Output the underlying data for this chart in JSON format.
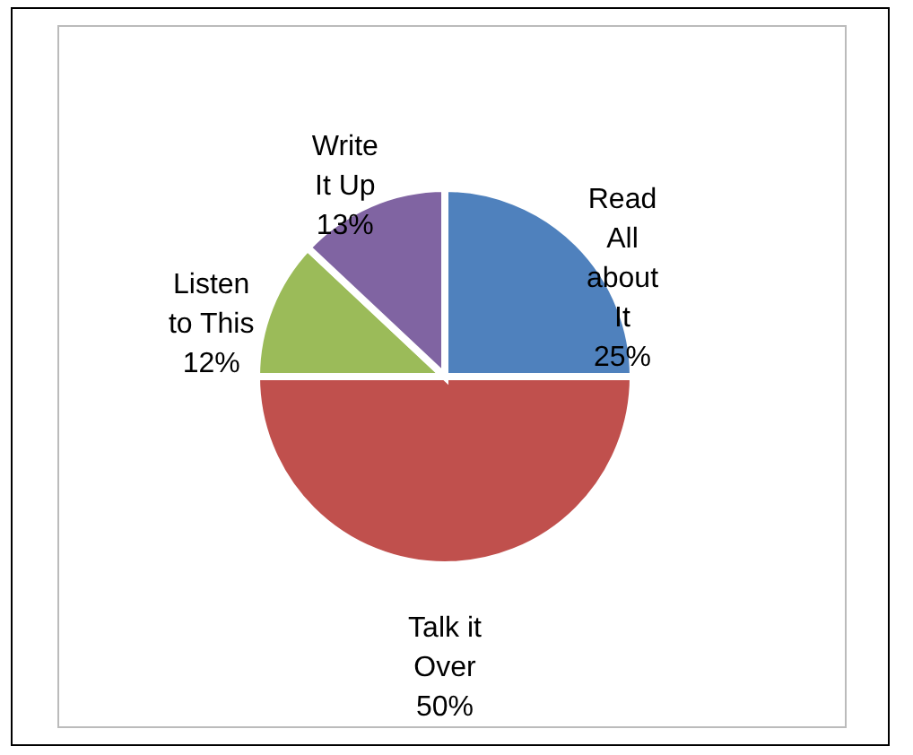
{
  "chart_data": {
    "type": "pie",
    "categories": [
      "Read All about It",
      "Talk it Over",
      "Listen to This",
      "Write It Up"
    ],
    "values": [
      25,
      50,
      12,
      13
    ],
    "colors": [
      "#4f81bd",
      "#c0504d",
      "#9bbb59",
      "#8064a2"
    ],
    "value_labels": [
      "25%",
      "50%",
      "12%",
      "13%"
    ]
  }
}
